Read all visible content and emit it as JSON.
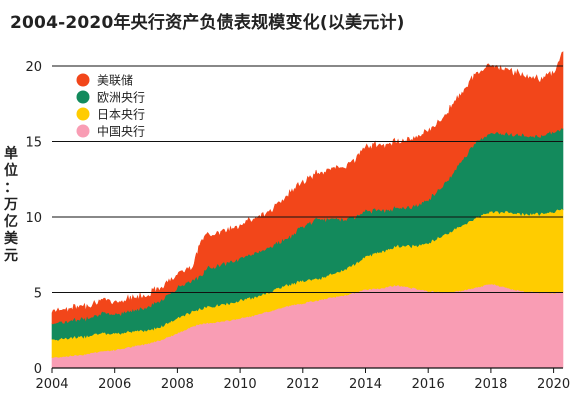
{
  "title": "2004-2020年央行资产负债表规模变化(以美元计)",
  "ylabel_chars": [
    "单",
    "位",
    "：",
    "万",
    "亿",
    "美",
    "元"
  ],
  "colors": {
    "fed": "#F2461A",
    "ecb": "#138A5C",
    "boj": "#FFCC00",
    "pboc": "#F99DB4"
  },
  "chart_data": {
    "type": "area",
    "stacked": true,
    "ylabel": "单位：万亿美元",
    "xlim": [
      2004,
      2020.3
    ],
    "ylim": [
      0,
      20
    ],
    "xticks": [
      2004,
      2006,
      2008,
      2010,
      2012,
      2014,
      2016,
      2018,
      2020
    ],
    "yticks": [
      0,
      5,
      10,
      15,
      20
    ],
    "grid": "horizontal",
    "legend_position": "top-left",
    "x": [
      2004.0,
      2004.5,
      2005.0,
      2005.5,
      2006.0,
      2006.5,
      2007.0,
      2007.5,
      2008.0,
      2008.5,
      2008.75,
      2009.0,
      2009.5,
      2010.0,
      2010.5,
      2011.0,
      2011.5,
      2012.0,
      2012.5,
      2013.0,
      2013.5,
      2014.0,
      2014.5,
      2015.0,
      2015.5,
      2016.0,
      2016.5,
      2017.0,
      2017.5,
      2018.0,
      2018.5,
      2019.0,
      2019.5,
      2020.0,
      2020.3
    ],
    "series": [
      {
        "name": "中国央行",
        "color_key": "pboc",
        "values": [
          0.7,
          0.8,
          0.9,
          1.1,
          1.2,
          1.4,
          1.6,
          1.9,
          2.3,
          2.8,
          2.9,
          3.0,
          3.1,
          3.3,
          3.5,
          3.8,
          4.1,
          4.3,
          4.5,
          4.7,
          4.9,
          5.2,
          5.3,
          5.5,
          5.3,
          5.1,
          5.0,
          5.1,
          5.3,
          5.6,
          5.3,
          5.1,
          5.0,
          5.0,
          5.0
        ]
      },
      {
        "name": "日本央行",
        "color_key": "boj",
        "values": [
          1.2,
          1.2,
          1.2,
          1.2,
          1.1,
          1.0,
          0.9,
          0.9,
          1.0,
          1.0,
          1.0,
          1.1,
          1.1,
          1.2,
          1.2,
          1.3,
          1.4,
          1.5,
          1.4,
          1.6,
          1.8,
          2.2,
          2.4,
          2.6,
          2.8,
          3.2,
          3.8,
          4.3,
          4.6,
          4.8,
          5.0,
          5.1,
          5.2,
          5.4,
          5.5
        ]
      },
      {
        "name": "欧洲央行",
        "color_key": "ecb",
        "values": [
          1.1,
          1.1,
          1.2,
          1.3,
          1.3,
          1.4,
          1.5,
          1.8,
          2.0,
          2.1,
          2.2,
          2.6,
          2.7,
          2.8,
          2.9,
          3.0,
          3.1,
          3.6,
          4.0,
          3.6,
          3.2,
          3.0,
          2.8,
          2.5,
          2.6,
          2.9,
          3.3,
          4.2,
          5.0,
          5.2,
          5.2,
          5.2,
          5.1,
          5.3,
          5.3
        ]
      },
      {
        "name": "美联储",
        "color_key": "fed",
        "values": [
          0.8,
          0.8,
          0.8,
          0.8,
          0.8,
          0.8,
          0.8,
          0.8,
          0.9,
          0.9,
          2.3,
          2.2,
          2.1,
          2.2,
          2.3,
          2.4,
          2.8,
          2.9,
          3.0,
          3.3,
          3.6,
          4.2,
          4.3,
          4.4,
          4.5,
          4.5,
          4.5,
          4.5,
          4.5,
          4.5,
          4.2,
          4.0,
          3.8,
          3.9,
          5.0
        ]
      }
    ]
  }
}
